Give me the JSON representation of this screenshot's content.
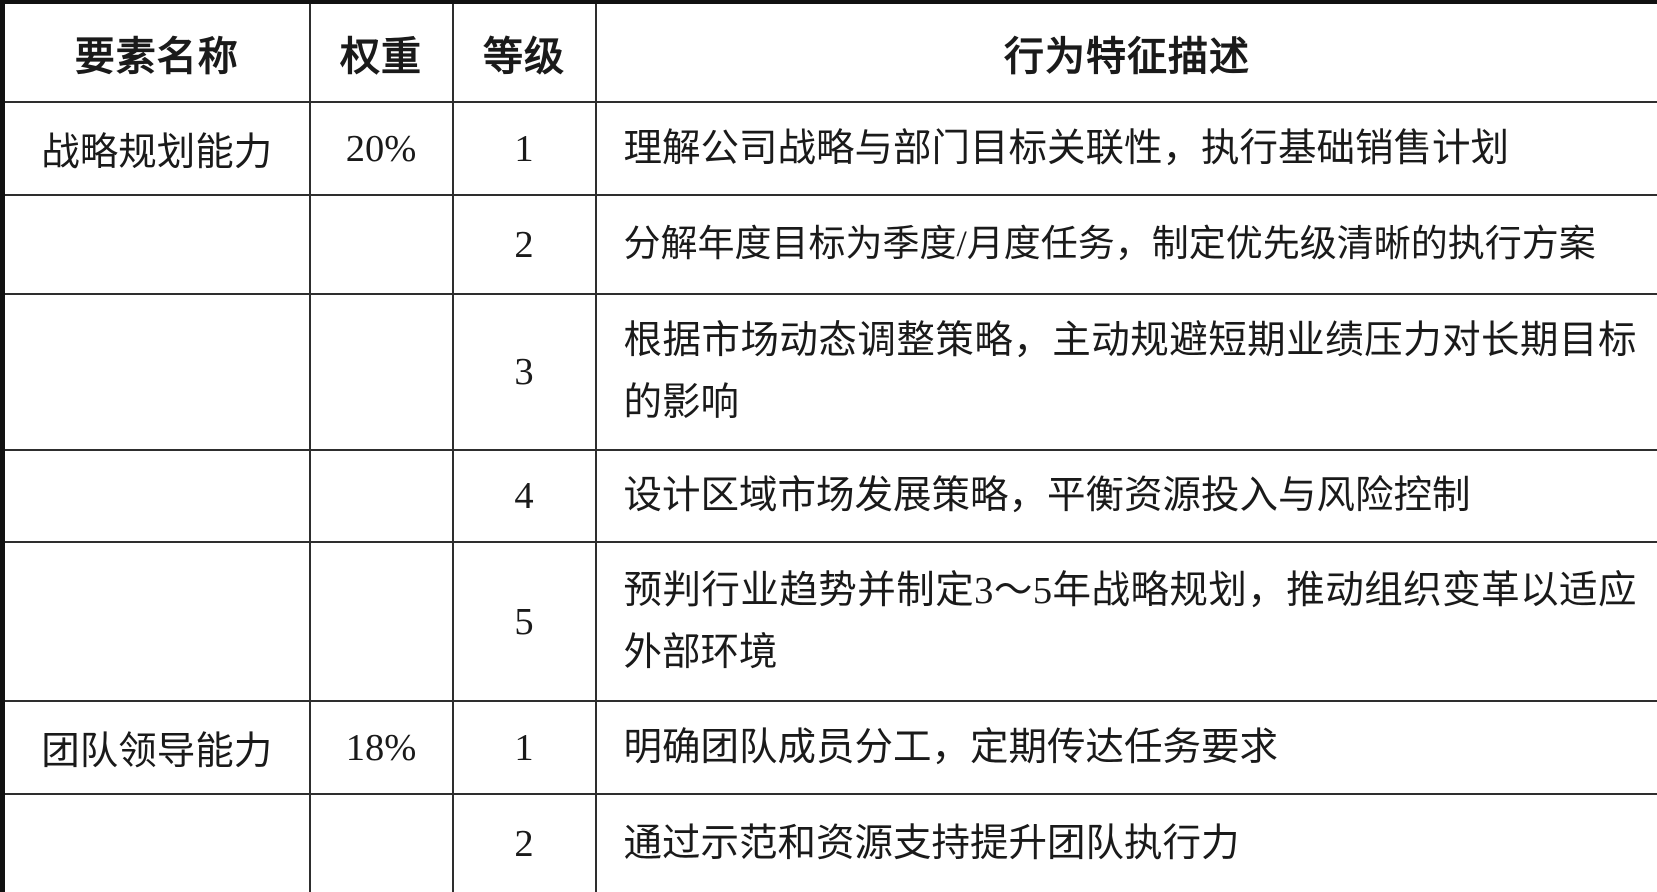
{
  "page": {
    "background": "#ffffff",
    "text_color": "#1a1a1a",
    "border_color": "#111111"
  },
  "table": {
    "columns": [
      {
        "label": "要素名称"
      },
      {
        "label": "权重"
      },
      {
        "label": "等级"
      },
      {
        "label": "行为特征描述"
      }
    ],
    "rows": [
      {
        "element": "战略规划能力",
        "weight": "20%",
        "level": "1",
        "description": "理解公司战略与部门目标关联性，执行基础销售计划"
      },
      {
        "element": "",
        "weight": "",
        "level": "2",
        "description": "分解年度目标为季度/月度任务，制定优先级清晰的执行方案"
      },
      {
        "element": "",
        "weight": "",
        "level": "3",
        "description": "根据市场动态调整策略，主动规避短期业绩压力对长期目标的影响"
      },
      {
        "element": "",
        "weight": "",
        "level": "4",
        "description": "设计区域市场发展策略，平衡资源投入与风险控制"
      },
      {
        "element": "",
        "weight": "",
        "level": "5",
        "description": "预判行业趋势并制定3～5年战略规划，推动组织变革以适应外部环境"
      },
      {
        "element": "团队领导能力",
        "weight": "18%",
        "level": "1",
        "description": "明确团队成员分工，定期传达任务要求"
      },
      {
        "element": "",
        "weight": "",
        "level": "2",
        "description": "通过示范和资源支持提升团队执行力"
      }
    ]
  }
}
